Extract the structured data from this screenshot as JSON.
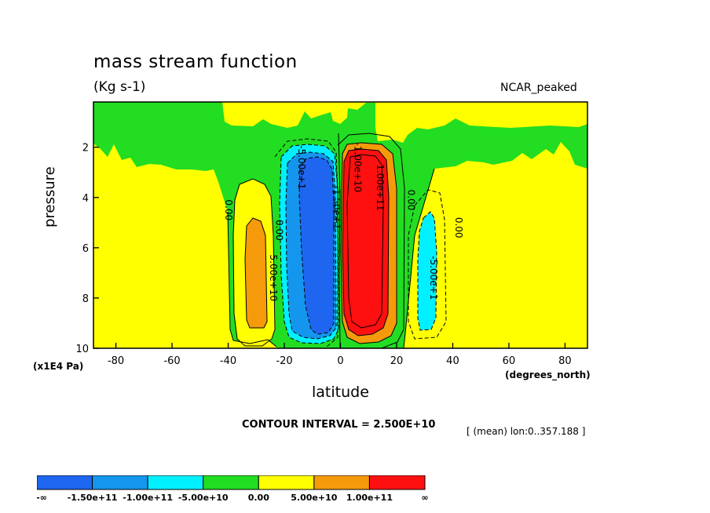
{
  "chart_data": {
    "type": "contour",
    "title": "mass stream function",
    "units_label": "(Kg s-1)",
    "model_label": "NCAR_peaked",
    "xlabel": "latitude",
    "x_unit_label": "(degrees_north)",
    "ylabel": "pressure",
    "y_unit_label": "(x1E4 Pa)",
    "xlim": [
      -88,
      88
    ],
    "ylim": [
      10,
      0.2
    ],
    "x_ticks": [
      -80,
      -60,
      -40,
      -20,
      0,
      20,
      40,
      60,
      80
    ],
    "y_ticks": [
      2,
      4,
      6,
      8,
      10
    ],
    "x_tick_labels": [
      "-80",
      "-60",
      "-40",
      "-20",
      "0",
      "20",
      "40",
      "60",
      "80"
    ],
    "y_tick_labels": [
      "2",
      "4",
      "6",
      "8",
      "10"
    ],
    "contour_interval_label": "CONTOUR INTERVAL = 2.500E+10",
    "subset_label": "[ (mean) lon:0..357.188 ]",
    "contour_labels": [
      {
        "text": "0.00",
        "lat": -41,
        "p": 4.5
      },
      {
        "text": "0.00",
        "lat": -23,
        "p": 5.3
      },
      {
        "text": "5.00e+10",
        "lat": -25,
        "p": 7.2
      },
      {
        "text": "-5.00e+1",
        "lat": -15,
        "p": 2.8
      },
      {
        "text": "-1.50e+1",
        "lat": -2.5,
        "p": 4.4
      },
      {
        "text": "-1.00e+10",
        "lat": 5,
        "p": 2.8
      },
      {
        "text": "1.00e+11",
        "lat": 13,
        "p": 3.6
      },
      {
        "text": "0.00",
        "lat": 24,
        "p": 4.1
      },
      {
        "text": "0.00",
        "lat": 41,
        "p": 5.2
      },
      {
        "text": "-5.00e+1",
        "lat": 32,
        "p": 7.2
      }
    ],
    "colorbar": {
      "levels": [
        "-∞",
        "-1.50e+11",
        "-1.00e+11",
        "-5.00e+10",
        "0.00",
        "5.00e+10",
        "1.00e+11",
        "∞"
      ],
      "colors": [
        "#1e66f0",
        "#1496ee",
        "#00f0ff",
        "#22dd22",
        "#ffff00",
        "#f59a0a",
        "#ff1010"
      ]
    }
  }
}
